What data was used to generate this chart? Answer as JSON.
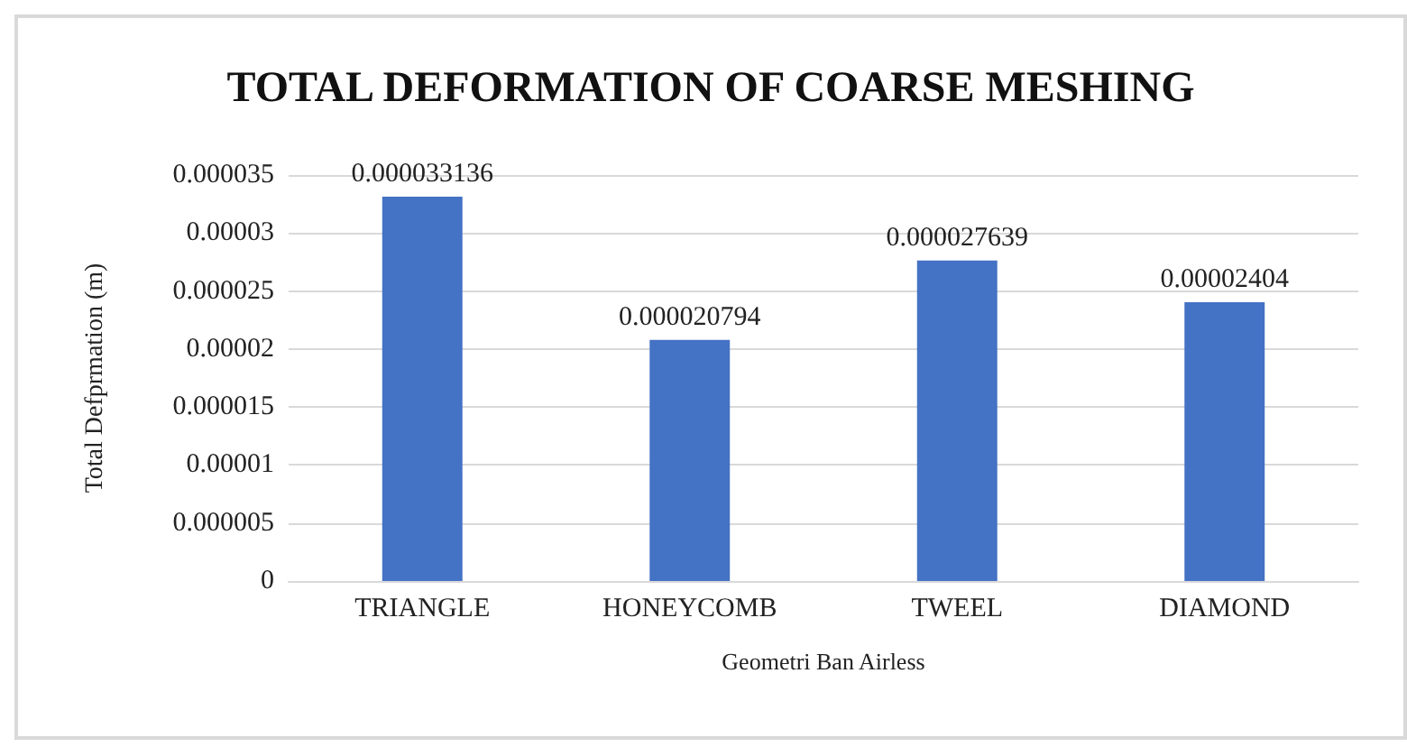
{
  "chart_data": {
    "type": "bar",
    "title": "TOTAL DEFORMATION OF COARSE MESHING",
    "xlabel": "Geometri Ban Airless",
    "ylabel": "Total Defprmation (m)",
    "categories": [
      "TRIANGLE",
      "HONEYCOMB",
      "TWEEL",
      "DIAMOND"
    ],
    "values": [
      3.3136e-05,
      2.0794e-05,
      2.7639e-05,
      2.404e-05
    ],
    "value_labels": [
      "0.000033136",
      "0.000020794",
      "0.000027639",
      "0.00002404"
    ],
    "color": "#4472c4",
    "ylim": [
      0,
      3.5e-05
    ],
    "yticks": [
      {
        "value": 0,
        "label": "0"
      },
      {
        "value": 5e-06,
        "label": "0.000005"
      },
      {
        "value": 1e-05,
        "label": "0.00001"
      },
      {
        "value": 1.5e-05,
        "label": "0.000015"
      },
      {
        "value": 2e-05,
        "label": "0.00002"
      },
      {
        "value": 2.5e-05,
        "label": "0.000025"
      },
      {
        "value": 3e-05,
        "label": "0.00003"
      },
      {
        "value": 3.5e-05,
        "label": "0.000035"
      }
    ],
    "grid": "y"
  }
}
